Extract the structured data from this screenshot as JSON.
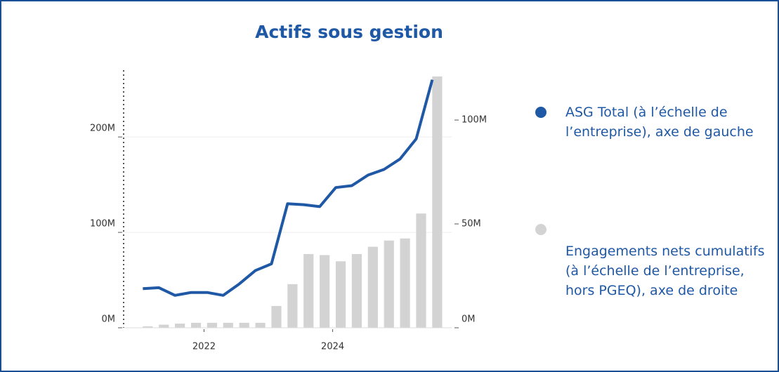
{
  "chart_data": {
    "type": "bar-line",
    "title": "Actifs sous gestion",
    "x": [
      2021.125,
      2021.375,
      2021.625,
      2021.875,
      2022.125,
      2022.375,
      2022.625,
      2022.875,
      2023.125,
      2023.375,
      2023.625,
      2023.875,
      2024.125,
      2024.375,
      2024.625,
      2024.875,
      2025.125,
      2025.375,
      2025.625
    ],
    "xlim": [
      2020.75,
      2025.85
    ],
    "xticks": [
      2022,
      2024
    ],
    "ylim": [
      0,
      270
    ],
    "yticks": [
      {
        "value": 0,
        "label": "0M"
      },
      {
        "value": 100,
        "label": "100M"
      },
      {
        "value": 200,
        "label": "200M"
      }
    ],
    "y2lim": [
      0,
      124
    ],
    "y2ticks": [
      {
        "value": 0,
        "label": "0M"
      },
      {
        "value": 50,
        "label": "50M"
      },
      {
        "value": 100,
        "label": "100M"
      }
    ],
    "grid": true,
    "legend": "right",
    "series": [
      {
        "name": "ASG Total (à l’échelle de l’entreprise), axe de gauche",
        "type": "line",
        "color": "#1f58a5",
        "values": [
          41,
          42,
          34,
          37,
          37,
          34,
          46,
          60,
          67,
          130,
          129,
          127,
          147,
          149,
          160,
          166,
          177,
          198,
          260
        ]
      },
      {
        "name": "Engagements nets cumulatifs (à l’échelle de l’entreprise, hors PGEQ), axe de droite",
        "type": "bar",
        "axis": "y2",
        "color": "#d3d3d3",
        "values": [
          0.7,
          1.5,
          2,
          2.4,
          2.4,
          2.4,
          2.4,
          2.4,
          10.5,
          21,
          35.5,
          35,
          32,
          35.5,
          39,
          42,
          43,
          55,
          121
        ]
      }
    ]
  }
}
